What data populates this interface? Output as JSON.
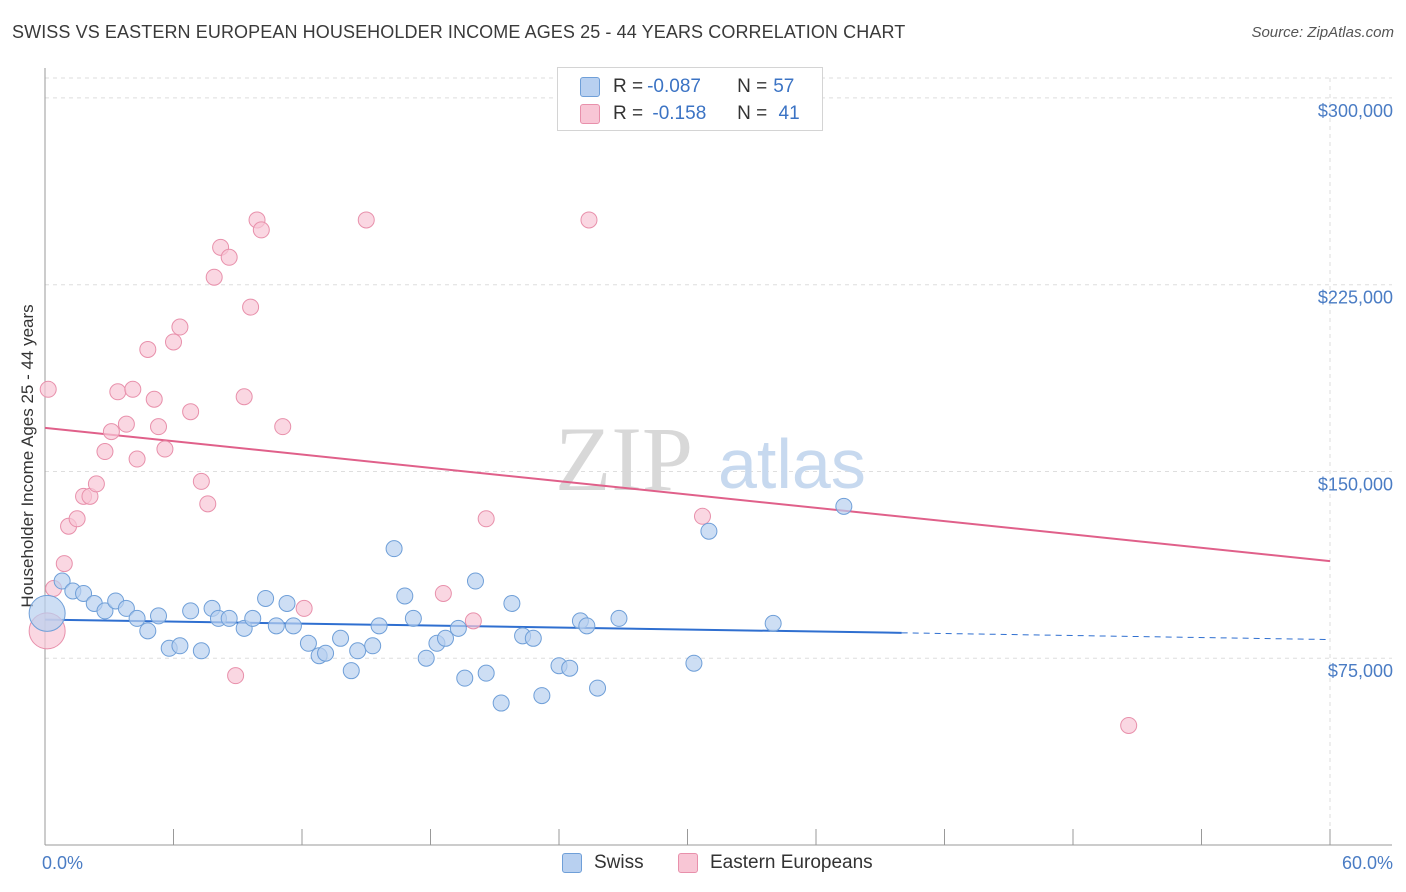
{
  "header": {
    "title": "SWISS VS EASTERN EUROPEAN HOUSEHOLDER INCOME AGES 25 - 44 YEARS CORRELATION CHART",
    "source": "Source: ZipAtlas.com"
  },
  "watermark": {
    "zip": "ZIP",
    "atlas": "atlas"
  },
  "colors": {
    "swiss_fill": "#b8d0f0",
    "swiss_stroke": "#6f9fd8",
    "swiss_line": "#2f6fd0",
    "eastern_fill": "#f8c6d5",
    "eastern_stroke": "#e890ab",
    "eastern_line": "#e0608a",
    "tick_text": "#4a7cc4",
    "grid": "#dedede"
  },
  "legend": {
    "rows": [
      {
        "r_label": "R = ",
        "r_value": "-0.087",
        "n_label": "N = ",
        "n_value": "57"
      },
      {
        "r_label": "R = ",
        "r_value": " -0.158",
        "n_label": "N = ",
        "n_value": " 41"
      }
    ]
  },
  "bottom_legend": {
    "swiss": "Swiss",
    "eastern": "Eastern Europeans"
  },
  "chart_data": {
    "type": "scatter",
    "title": "SWISS VS EASTERN EUROPEAN HOUSEHOLDER INCOME AGES 25 - 44 YEARS CORRELATION CHART",
    "xlabel": "",
    "ylabel": "Householder Income Ages 25 - 44 years",
    "xlim": [
      0,
      60
    ],
    "ylim": [
      0,
      308000
    ],
    "x_tick_labels": [
      "0.0%",
      "60.0%"
    ],
    "y_ticks": [
      75000,
      150000,
      225000,
      300000
    ],
    "y_tick_labels": [
      "$75,000",
      "$150,000",
      "$225,000",
      "$300,000"
    ],
    "grid": true,
    "legend_position": "top-center",
    "series": [
      {
        "name": "Swiss",
        "r": -0.087,
        "n": 57,
        "trend": {
          "x0": 0,
          "y0": 90500,
          "x1": 40,
          "y1": 85200,
          "dashed_to_x": 60,
          "dashed_to_y": 82500
        },
        "points": [
          [
            0.1,
            93000
          ],
          [
            0.8,
            106000
          ],
          [
            1.3,
            102000
          ],
          [
            1.8,
            101000
          ],
          [
            2.3,
            97000
          ],
          [
            2.8,
            94000
          ],
          [
            3.3,
            98000
          ],
          [
            3.8,
            95000
          ],
          [
            4.3,
            91000
          ],
          [
            4.8,
            86000
          ],
          [
            5.3,
            92000
          ],
          [
            5.8,
            79000
          ],
          [
            6.3,
            80000
          ],
          [
            6.8,
            94000
          ],
          [
            7.3,
            78000
          ],
          [
            7.8,
            95000
          ],
          [
            8.1,
            91000
          ],
          [
            8.6,
            91000
          ],
          [
            9.3,
            87000
          ],
          [
            9.7,
            91000
          ],
          [
            10.3,
            99000
          ],
          [
            10.8,
            88000
          ],
          [
            11.3,
            97000
          ],
          [
            11.6,
            88000
          ],
          [
            12.3,
            81000
          ],
          [
            12.8,
            76000
          ],
          [
            13.1,
            77000
          ],
          [
            13.8,
            83000
          ],
          [
            14.3,
            70000
          ],
          [
            14.6,
            78000
          ],
          [
            15.3,
            80000
          ],
          [
            15.6,
            88000
          ],
          [
            16.3,
            119000
          ],
          [
            16.8,
            100000
          ],
          [
            17.2,
            91000
          ],
          [
            17.8,
            75000
          ],
          [
            18.3,
            81000
          ],
          [
            18.7,
            83000
          ],
          [
            19.3,
            87000
          ],
          [
            19.6,
            67000
          ],
          [
            20.1,
            106000
          ],
          [
            20.6,
            69000
          ],
          [
            21.3,
            57000
          ],
          [
            21.8,
            97000
          ],
          [
            22.3,
            84000
          ],
          [
            22.8,
            83000
          ],
          [
            23.2,
            60000
          ],
          [
            24.0,
            72000
          ],
          [
            24.5,
            71000
          ],
          [
            25.0,
            90000
          ],
          [
            25.3,
            88000
          ],
          [
            25.8,
            63000
          ],
          [
            26.8,
            91000
          ],
          [
            30.3,
            73000
          ],
          [
            31.0,
            126000
          ],
          [
            34.0,
            89000
          ],
          [
            37.3,
            136000
          ]
        ]
      },
      {
        "name": "Eastern Europeans",
        "r": -0.158,
        "n": 41,
        "trend": {
          "x0": 0,
          "y0": 167500,
          "x1": 60,
          "y1": 114000
        },
        "points": [
          [
            0.1,
            86000
          ],
          [
            0.4,
            103000
          ],
          [
            0.9,
            113000
          ],
          [
            1.1,
            128000
          ],
          [
            1.5,
            131000
          ],
          [
            1.8,
            140000
          ],
          [
            2.1,
            140000
          ],
          [
            2.4,
            145000
          ],
          [
            2.8,
            158000
          ],
          [
            3.1,
            166000
          ],
          [
            3.4,
            182000
          ],
          [
            3.8,
            169000
          ],
          [
            4.1,
            183000
          ],
          [
            4.3,
            155000
          ],
          [
            4.8,
            199000
          ],
          [
            5.1,
            179000
          ],
          [
            5.3,
            168000
          ],
          [
            5.6,
            159000
          ],
          [
            6.0,
            202000
          ],
          [
            6.3,
            208000
          ],
          [
            6.8,
            174000
          ],
          [
            7.3,
            146000
          ],
          [
            7.6,
            137000
          ],
          [
            7.9,
            228000
          ],
          [
            8.2,
            240000
          ],
          [
            8.6,
            236000
          ],
          [
            8.9,
            68000
          ],
          [
            9.3,
            180000
          ],
          [
            9.6,
            216000
          ],
          [
            9.9,
            251000
          ],
          [
            10.1,
            247000
          ],
          [
            11.1,
            168000
          ],
          [
            12.1,
            95000
          ],
          [
            15.0,
            251000
          ],
          [
            18.6,
            101000
          ],
          [
            20.0,
            90000
          ],
          [
            20.6,
            131000
          ],
          [
            25.4,
            251000
          ],
          [
            30.7,
            132000
          ],
          [
            50.6,
            48000
          ],
          [
            0.15,
            183000
          ]
        ]
      }
    ]
  }
}
